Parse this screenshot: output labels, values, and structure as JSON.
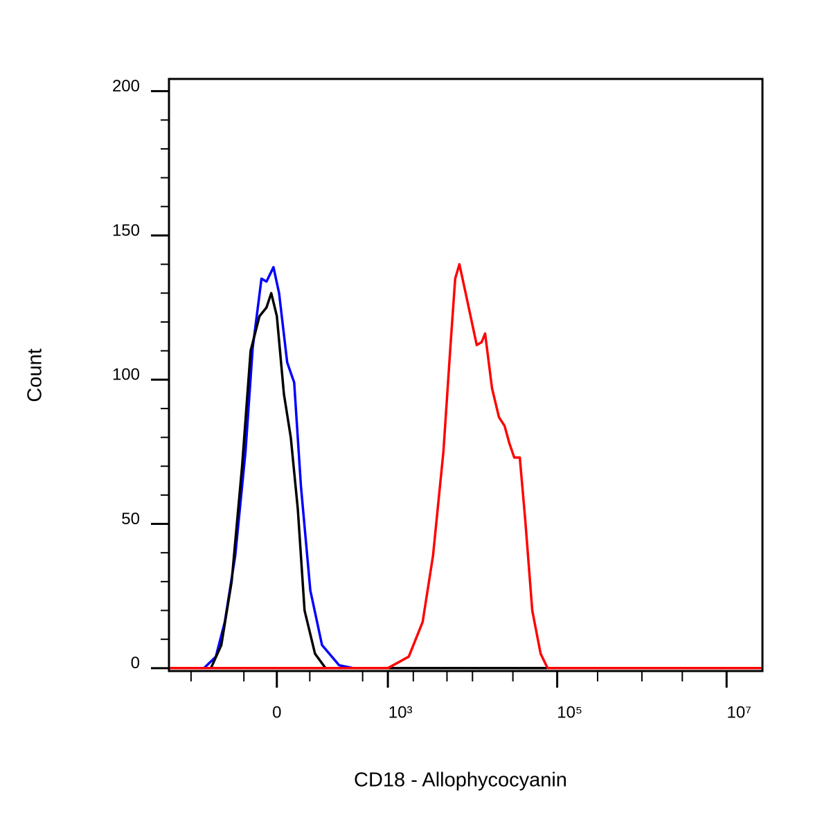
{
  "chart_data": {
    "type": "line",
    "x_label": "CD18 - Allophycocyanin",
    "y_label": "Count",
    "xscale": {
      "type": "arcsinh",
      "cofactor": 98
    },
    "xlim": [
      -900,
      26000000
    ],
    "xticks": [
      0,
      {
        "value": 1000,
        "label": "10³"
      },
      {
        "value": 100000,
        "label": "10⁵"
      },
      {
        "value": 10000000,
        "label": "10⁷"
      }
    ],
    "xminorticks": [
      -500,
      -100,
      100,
      500,
      2000,
      5000,
      10000,
      30000,
      300000,
      1000000,
      3000000
    ],
    "ylim": [
      -1,
      204
    ],
    "yticks": [
      0,
      50,
      100,
      150,
      200
    ],
    "yminorticks": [
      10,
      20,
      30,
      40,
      60,
      70,
      80,
      90,
      110,
      120,
      130,
      140,
      160,
      170,
      180,
      190
    ],
    "series": [
      {
        "color": "#0000ff",
        "x": [
          -900,
          -348,
          -248,
          -190,
          -136,
          -94,
          -69,
          -42,
          -28,
          -9,
          6,
          28,
          48,
          69,
          102,
          153,
          258,
          384,
          26000000
        ],
        "values": [
          0,
          0,
          4,
          16,
          39,
          75,
          111,
          135,
          134,
          139,
          130,
          106,
          99,
          63,
          27,
          8,
          1,
          0,
          0
        ]
      },
      {
        "color": "#000000",
        "x": [
          -900,
          -286,
          -211,
          -153,
          -107,
          -76,
          -48,
          -28,
          -15,
          0,
          19,
          38,
          59,
          81,
          121,
          171,
          26000000
        ],
        "values": [
          0,
          0,
          8,
          30,
          70,
          110,
          122,
          125,
          130,
          122,
          95,
          80,
          55,
          20,
          5,
          0,
          0
        ]
      },
      {
        "color": "#ff0000",
        "x": [
          -900,
          1000,
          1767,
          2578,
          3420,
          4537,
          5478,
          6252,
          7002,
          8296,
          9653,
          11220,
          12810,
          14080,
          17000,
          20530,
          23900,
          27250,
          31100,
          36160,
          42090,
          50770,
          63700,
          76950,
          26000000
        ],
        "values": [
          0,
          0,
          4,
          16,
          39,
          75,
          111,
          135,
          140,
          130,
          121,
          112,
          113,
          116,
          97,
          87,
          84,
          78,
          73,
          73,
          51,
          20,
          5,
          0,
          0
        ]
      }
    ]
  }
}
